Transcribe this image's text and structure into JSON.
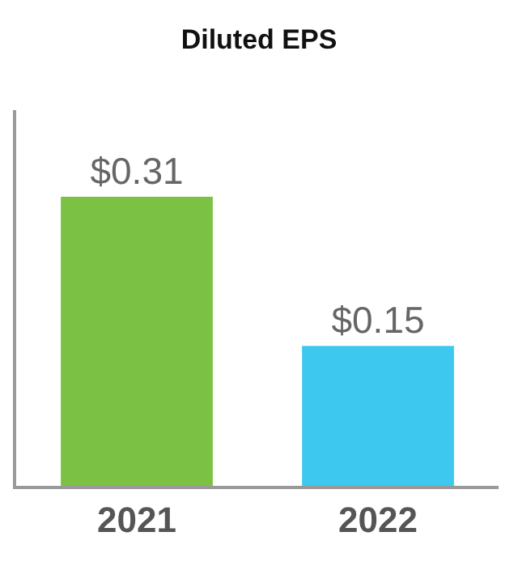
{
  "chart_data": {
    "type": "bar",
    "title": "Diluted EPS",
    "categories": [
      "2021",
      "2022"
    ],
    "values": [
      0.31,
      0.15
    ],
    "colors": [
      "#7bc143",
      "#3dc8f0"
    ],
    "value_labels": [
      "$0.31",
      "$0.15"
    ]
  }
}
